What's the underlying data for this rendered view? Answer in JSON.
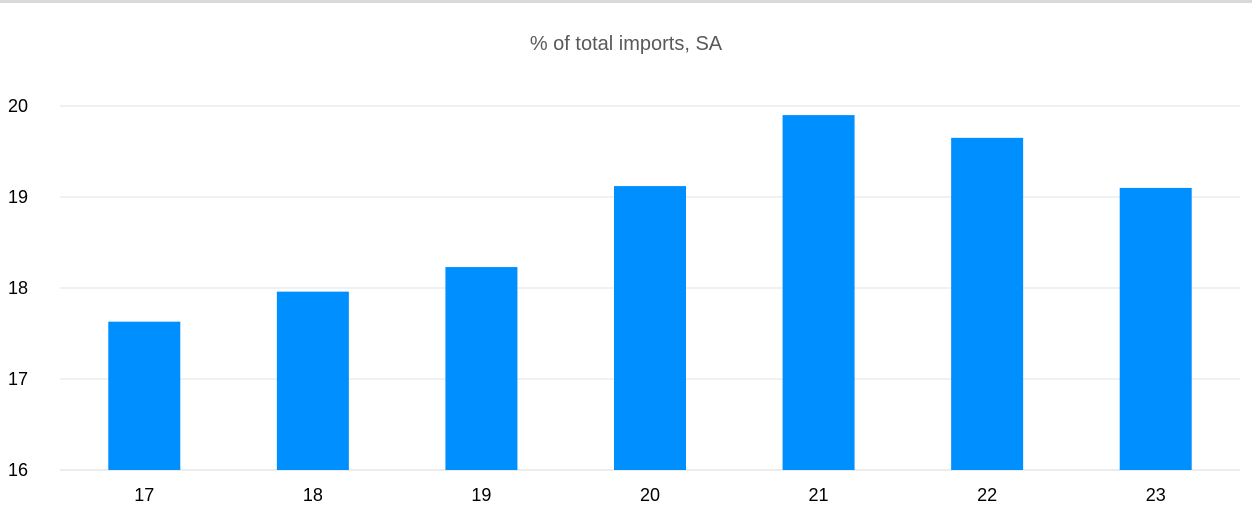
{
  "chart_data": {
    "type": "bar",
    "title": "% of total imports, SA",
    "categories": [
      "17",
      "18",
      "19",
      "20",
      "21",
      "22",
      "23"
    ],
    "values": [
      17.63,
      17.96,
      18.23,
      19.12,
      19.9,
      19.65,
      19.1
    ],
    "xlabel": "",
    "ylabel": "",
    "ylim": [
      16,
      20
    ],
    "yticks": [
      16,
      17,
      18,
      19,
      20
    ],
    "grid": true,
    "colors": {
      "bar": "#008fff",
      "grid": "#e3e3e3",
      "axis": "#d9d9d9",
      "title": "#595959"
    }
  }
}
